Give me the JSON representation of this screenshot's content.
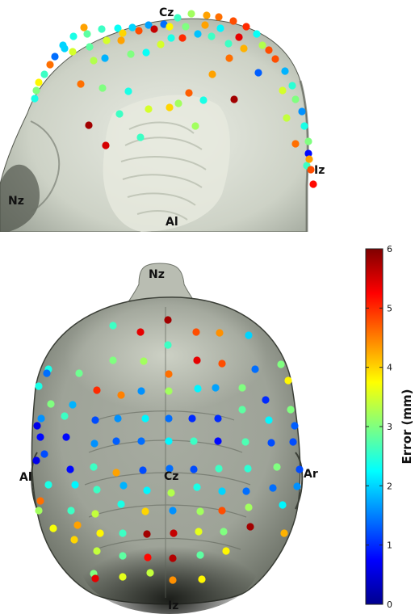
{
  "labels": {
    "side_view": {
      "cz": "Cz",
      "nz": "Nz",
      "al": "Al",
      "iz": "Iz"
    },
    "top_view": {
      "nz": "Nz",
      "al": "Al",
      "ar": "Ar",
      "cz": "Cz",
      "iz": "Iz"
    }
  },
  "colorbar": {
    "title": "Error (mm)",
    "min": 0,
    "max": 6,
    "ticks": [
      "0",
      "1",
      "2",
      "3",
      "4",
      "5",
      "6"
    ],
    "colormap": "jet"
  },
  "electrode_errors_mm": {
    "side_view": [
      4.3,
      2.6,
      2.3,
      2.0,
      1.7,
      1.4,
      2.6,
      3.2,
      4.3,
      4.6,
      4.8,
      5.0,
      2.4,
      2.8,
      3.5,
      4.0,
      4.8,
      5.6,
      3.8,
      3.0,
      4.3,
      2.2,
      5.4,
      2.3,
      2.0,
      1.4,
      2.0,
      3.5,
      4.6,
      2.6,
      3.8,
      3.0,
      2.4,
      2.8,
      3.3,
      1.8,
      4.3,
      3.0,
      2.3,
      3.5,
      2.4,
      5.0,
      1.9,
      2.6,
      2.6,
      3.3,
      4.8,
      4.8,
      1.8,
      2.5,
      3.0,
      1.6,
      2.4,
      3.0,
      0.8,
      2.6,
      5.2,
      4.6,
      3.0,
      2.6,
      3.5,
      4.0,
      4.7,
      4.3,
      5.8,
      2.4,
      3.2,
      2.4,
      2.6,
      5.5,
      5.8,
      3.2,
      4.6,
      4.2,
      1.3,
      3.5,
      3.4,
      4.6,
      4.3,
      4.8
    ],
    "top_view": [
      5.8,
      2.6,
      5.4,
      4.8,
      2.6,
      4.4,
      2.0,
      3.0,
      3.2,
      5.4,
      4.6,
      4.8,
      1.4,
      3.0,
      2.9,
      2.4,
      1.4,
      5.0,
      4.5,
      3.2,
      1.6,
      2.2,
      1.7,
      3.0,
      3.8,
      2.4,
      1.8,
      3.0,
      1.6,
      2.6,
      1.2,
      1.6,
      2.2,
      1.4,
      1.0,
      1.0,
      2.8,
      1.0,
      3.0,
      2.2,
      1.3,
      0.6,
      0.8,
      0.8,
      1.6,
      1.3,
      1.4,
      2.2,
      2.6,
      0.8,
      2.7,
      1.2,
      1.2,
      1.2,
      0.6,
      0.8,
      2.6,
      4.3,
      1.2,
      1.4,
      1.2,
      2.6,
      2.5,
      3.0,
      1.2,
      2.4,
      2.2,
      2.6,
      1.8,
      2.2,
      3.3,
      2.4,
      2.0,
      1.4,
      1.4,
      1.6,
      4.6,
      3.2,
      2.6,
      3.4,
      2.4,
      4.0,
      1.6,
      3.2,
      4.8,
      3.2,
      2.2,
      3.7,
      4.3,
      3.8,
      2.6,
      5.8,
      5.6,
      3.6,
      3.0,
      5.8,
      4.2,
      4.0,
      3.4,
      2.8,
      5.2,
      5.7,
      2.8,
      3.8,
      3.0,
      5.4,
      3.6,
      3.4,
      4.4,
      3.8
    ]
  }
}
